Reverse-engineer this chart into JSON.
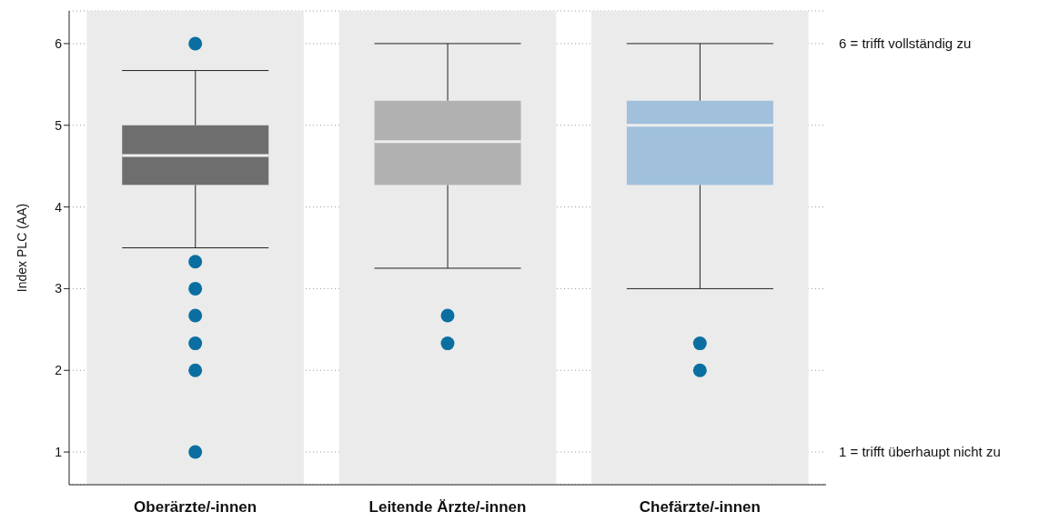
{
  "chart_data": {
    "type": "box",
    "ylabel": "Index PLC (AA)",
    "categories": [
      "Oberärzte/-innen",
      "Leitende Ärzte/-innen",
      "Chefärzte/-innen"
    ],
    "colors": [
      "#6e6e6e",
      "#b1b1b1",
      "#a0c0dc"
    ],
    "boxes": [
      {
        "low": 3.5,
        "q1": 4.27,
        "median": 4.63,
        "q3": 5.0,
        "high": 5.67,
        "outliers": [
          6,
          3.33,
          3,
          2.67,
          2.33,
          2,
          1
        ]
      },
      {
        "low": 3.25,
        "q1": 4.27,
        "median": 4.8,
        "q3": 5.3,
        "high": 6,
        "outliers": [
          2.67,
          2.33
        ]
      },
      {
        "low": 3,
        "q1": 4.27,
        "median": 5.0,
        "q3": 5.3,
        "high": 6,
        "outliers": [
          2.33,
          2
        ]
      }
    ],
    "bands": [
      {
        "axis": "x",
        "from": "Oberärzte/-innen",
        "to": "Oberärzte/-innen",
        "color": "#ebebeb"
      },
      {
        "axis": "x",
        "from": "Leitende Ärzte/-innen",
        "to": "Leitende Ärzte/-innen",
        "color": "#ebebeb"
      },
      {
        "axis": "x",
        "from": "Chefärzte/-innen",
        "to": "Chefärzte/-innen",
        "color": "#ebebeb"
      }
    ],
    "ylim": [
      0.6,
      6.4
    ],
    "yticks": [
      1,
      2,
      3,
      4,
      5,
      6
    ],
    "grid": "y",
    "y2lim": [
      0.6,
      6.4
    ],
    "y2ticks": [
      {
        "value": 6,
        "label": "6 = trifft vollständig zu"
      },
      {
        "value": 1,
        "label": "1 = trifft überhaupt nicht zu"
      }
    ]
  }
}
